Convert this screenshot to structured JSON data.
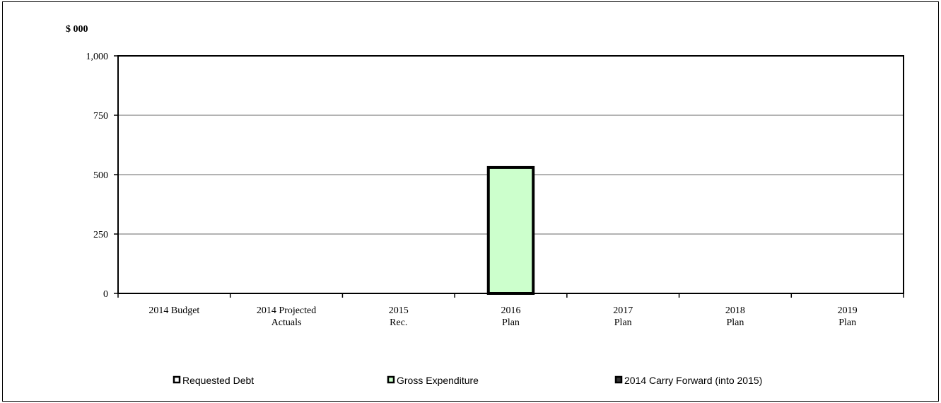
{
  "chart_data": {
    "type": "bar",
    "unit_label": "$ 000",
    "categories": [
      [
        "2014 Budget"
      ],
      [
        "2014 Projected",
        "Actuals"
      ],
      [
        "2015",
        "Rec."
      ],
      [
        "2016",
        "Plan"
      ],
      [
        "2017",
        "Plan"
      ],
      [
        "2018",
        "Plan"
      ],
      [
        "2019",
        "Plan"
      ]
    ],
    "y_ticks": [
      "0",
      "250",
      "500",
      "750",
      "1,000"
    ],
    "ylim": [
      0,
      1000
    ],
    "grid": true,
    "legend_position": "bottom",
    "series": [
      {
        "name": "Requested Debt",
        "values": [
          0,
          0,
          0,
          0,
          0,
          0,
          0
        ],
        "color": "#ffffff"
      },
      {
        "name": "Gross Expenditure",
        "values": [
          0,
          0,
          0,
          530,
          0,
          0,
          0
        ],
        "color": "#ccffcc"
      },
      {
        "name": "2014 Carry Forward (into 2015)",
        "values": [
          0,
          0,
          0,
          0,
          0,
          0,
          0
        ],
        "color": "#333333"
      }
    ]
  }
}
